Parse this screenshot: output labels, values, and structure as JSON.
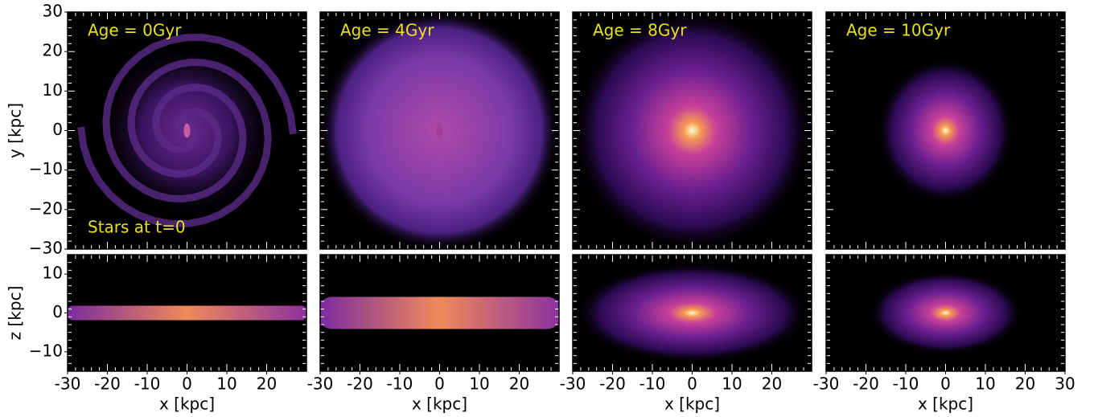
{
  "chart_data": [
    {
      "type": "image",
      "title": "Age = 0Gyr",
      "annotation": "Stars at t=0",
      "ylabel": "y [kpc]",
      "xlim": [
        -30,
        30
      ],
      "ylim": [
        -30,
        30
      ],
      "yticks": [
        {
          "value": -30,
          "label": "−30"
        },
        {
          "value": -20,
          "label": "−20"
        },
        {
          "value": -10,
          "label": "−10"
        },
        0,
        10,
        20,
        30
      ]
    },
    {
      "type": "image",
      "title": "Age = 4Gyr",
      "xlim": [
        -30,
        30
      ],
      "ylim": [
        -30,
        30
      ]
    },
    {
      "type": "image",
      "title": "Age = 8Gyr",
      "xlim": [
        -30,
        30
      ],
      "ylim": [
        -30,
        30
      ]
    },
    {
      "type": "image",
      "title": "Age = 10Gyr",
      "xlim": [
        -30,
        30
      ],
      "ylim": [
        -30,
        30
      ]
    },
    {
      "type": "image",
      "ylabel": "z [kpc]",
      "xlabel": "x [kpc]",
      "xlim": [
        -30,
        30
      ],
      "ylim": [
        -15,
        15
      ],
      "yticks": [
        {
          "value": -10,
          "label": "−10"
        },
        0,
        10
      ],
      "xticks": [
        -30,
        -20,
        -10,
        0,
        10,
        20
      ]
    },
    {
      "type": "image",
      "xlabel": "x [kpc]",
      "xlim": [
        -30,
        30
      ],
      "ylim": [
        -15,
        15
      ],
      "xticks": [
        -30,
        -20,
        -10,
        0,
        10,
        20
      ]
    },
    {
      "type": "image",
      "xlabel": "x [kpc]",
      "xlim": [
        -30,
        30
      ],
      "ylim": [
        -15,
        15
      ],
      "xticks": [
        -30,
        -20,
        -10,
        0,
        10,
        20
      ]
    },
    {
      "type": "image",
      "xlabel": "x [kpc]",
      "xlim": [
        -30,
        30
      ],
      "ylim": [
        -15,
        15
      ],
      "xticks": [
        -30,
        -20,
        -10,
        0,
        10,
        20,
        30
      ]
    }
  ]
}
